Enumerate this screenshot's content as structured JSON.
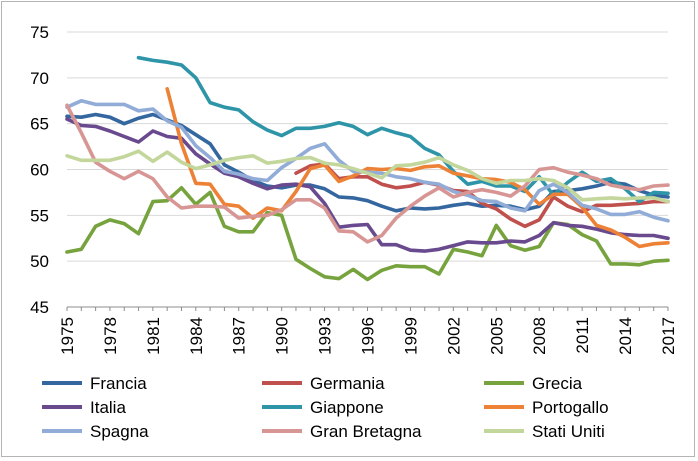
{
  "chart_data": {
    "type": "line",
    "title": "",
    "xlabel": "",
    "ylabel": "",
    "ylim": [
      45,
      75
    ],
    "yticks": [
      45,
      50,
      55,
      60,
      65,
      70,
      75
    ],
    "xlim": [
      1975,
      2017
    ],
    "xticks": [
      1975,
      1978,
      1981,
      1984,
      1987,
      1990,
      1993,
      1996,
      1999,
      2002,
      2005,
      2008,
      2011,
      2014,
      2017
    ],
    "grid": "horizontal",
    "legend_position": "bottom",
    "series": [
      {
        "name": "Francia",
        "color": "#34679f",
        "x": [
          1975,
          1976,
          1977,
          1978,
          1979,
          1980,
          1981,
          1982,
          1983,
          1984,
          1985,
          1986,
          1987,
          1988,
          1989,
          1990,
          1991,
          1992,
          1993,
          1994,
          1995,
          1996,
          1997,
          1998,
          1999,
          2000,
          2001,
          2002,
          2003,
          2004,
          2005,
          2006,
          2007,
          2008,
          2009,
          2010,
          2011,
          2012,
          2013,
          2014,
          2015,
          2016,
          2017
        ],
        "values": [
          65.8,
          65.7,
          66.0,
          65.7,
          65.0,
          65.6,
          66.0,
          65.4,
          64.8,
          63.8,
          62.8,
          60.5,
          59.7,
          58.8,
          58.2,
          58.0,
          58.3,
          58.3,
          57.9,
          57.0,
          56.9,
          56.6,
          56.0,
          55.5,
          55.8,
          55.7,
          55.8,
          56.1,
          56.3,
          56.0,
          56.1,
          56.0,
          55.6,
          56.0,
          57.6,
          57.7,
          57.9,
          58.2,
          58.6,
          58.4,
          57.7,
          57.2,
          57.0
        ]
      },
      {
        "name": "Germania",
        "color": "#c0504d",
        "x": [
          1991,
          1992,
          1993,
          1994,
          1995,
          1996,
          1997,
          1998,
          1999,
          2000,
          2001,
          2002,
          2003,
          2004,
          2005,
          2006,
          2007,
          2008,
          2009,
          2010,
          2011,
          2012,
          2013,
          2014,
          2015,
          2016,
          2017
        ],
        "values": [
          59.6,
          60.4,
          60.6,
          59.0,
          59.2,
          59.2,
          58.4,
          58.0,
          58.2,
          58.6,
          58.3,
          57.7,
          57.6,
          56.3,
          55.7,
          54.6,
          53.8,
          54.5,
          57.0,
          56.0,
          55.4,
          56.1,
          56.1,
          56.2,
          56.3,
          56.5,
          56.5
        ]
      },
      {
        "name": "Grecia",
        "color": "#77a33e",
        "x": [
          1975,
          1976,
          1977,
          1978,
          1979,
          1980,
          1981,
          1982,
          1983,
          1984,
          1985,
          1986,
          1987,
          1988,
          1989,
          1990,
          1991,
          1992,
          1993,
          1994,
          1995,
          1996,
          1997,
          1998,
          1999,
          2000,
          2001,
          2002,
          2003,
          2004,
          2005,
          2006,
          2007,
          2008,
          2009,
          2010,
          2011,
          2012,
          2013,
          2014,
          2015,
          2016,
          2017
        ],
        "values": [
          51.0,
          51.3,
          53.8,
          54.5,
          54.1,
          53.0,
          56.5,
          56.6,
          58.0,
          56.2,
          57.5,
          53.8,
          53.2,
          53.2,
          55.3,
          55.0,
          50.2,
          49.2,
          48.3,
          48.1,
          49.1,
          48.0,
          49.0,
          49.5,
          49.4,
          49.4,
          48.6,
          51.3,
          51.0,
          50.6,
          53.9,
          51.7,
          51.2,
          51.6,
          54.2,
          54.0,
          52.9,
          52.2,
          49.7,
          49.7,
          49.6,
          50.0,
          50.1
        ]
      },
      {
        "name": "Italia",
        "color": "#6a4a8e",
        "x": [
          1975,
          1976,
          1977,
          1978,
          1979,
          1980,
          1981,
          1982,
          1983,
          1984,
          1985,
          1986,
          1987,
          1988,
          1989,
          1990,
          1991,
          1992,
          1993,
          1994,
          1995,
          1996,
          1997,
          1998,
          1999,
          2000,
          2001,
          2002,
          2003,
          2004,
          2005,
          2006,
          2007,
          2008,
          2009,
          2010,
          2011,
          2012,
          2013,
          2014,
          2015,
          2016,
          2017
        ],
        "values": [
          65.5,
          64.8,
          64.7,
          64.2,
          63.6,
          63.0,
          64.2,
          63.6,
          63.4,
          61.7,
          60.6,
          59.6,
          59.2,
          58.5,
          57.9,
          58.3,
          58.4,
          58.1,
          56.3,
          53.7,
          53.9,
          54.0,
          51.8,
          51.8,
          51.2,
          51.1,
          51.3,
          51.7,
          52.1,
          52.0,
          52.0,
          52.2,
          52.1,
          52.8,
          54.2,
          53.9,
          53.8,
          53.5,
          53.1,
          52.9,
          52.8,
          52.8,
          52.5
        ]
      },
      {
        "name": "Giappone",
        "color": "#2e95a9",
        "x": [
          1980,
          1981,
          1982,
          1983,
          1984,
          1985,
          1986,
          1987,
          1988,
          1989,
          1990,
          1991,
          1992,
          1993,
          1994,
          1995,
          1996,
          1997,
          1998,
          1999,
          2000,
          2001,
          2002,
          2003,
          2004,
          2005,
          2006,
          2007,
          2008,
          2009,
          2010,
          2011,
          2012,
          2013,
          2014,
          2015,
          2016,
          2017
        ],
        "values": [
          72.2,
          71.9,
          71.7,
          71.4,
          70.0,
          67.3,
          66.8,
          66.5,
          65.2,
          64.3,
          63.7,
          64.5,
          64.5,
          64.7,
          65.1,
          64.7,
          63.8,
          64.5,
          64.0,
          63.6,
          62.3,
          61.6,
          59.8,
          58.4,
          58.7,
          58.2,
          58.2,
          57.6,
          59.2,
          57.2,
          58.6,
          59.7,
          58.7,
          59.0,
          57.9,
          56.5,
          57.5,
          57.4
        ]
      },
      {
        "name": "Portogallo",
        "color": "#ed8135",
        "x": [
          1982,
          1983,
          1984,
          1985,
          1986,
          1987,
          1988,
          1989,
          1990,
          1991,
          1992,
          1993,
          1994,
          1995,
          1996,
          1997,
          1998,
          1999,
          2000,
          2001,
          2002,
          2003,
          2004,
          2005,
          2006,
          2007,
          2008,
          2009,
          2010,
          2011,
          2012,
          2013,
          2014,
          2015,
          2016,
          2017
        ],
        "values": [
          68.8,
          62.8,
          58.5,
          58.4,
          56.2,
          56.0,
          54.7,
          55.8,
          55.5,
          57.6,
          60.1,
          60.5,
          58.7,
          59.3,
          60.1,
          60.0,
          60.1,
          59.9,
          60.3,
          60.4,
          59.6,
          59.3,
          59.0,
          58.9,
          58.6,
          57.8,
          56.2,
          57.3,
          57.3,
          55.9,
          53.9,
          53.4,
          52.6,
          51.6,
          51.9,
          52.0
        ]
      },
      {
        "name": "Spagna",
        "color": "#92acd8",
        "x": [
          1975,
          1976,
          1977,
          1978,
          1979,
          1980,
          1981,
          1982,
          1983,
          1984,
          1985,
          1986,
          1987,
          1988,
          1989,
          1990,
          1991,
          1992,
          1993,
          1994,
          1995,
          1996,
          1997,
          1998,
          1999,
          2000,
          2001,
          2002,
          2003,
          2004,
          2005,
          2006,
          2007,
          2008,
          2009,
          2010,
          2011,
          2012,
          2013,
          2014,
          2015,
          2016,
          2017
        ],
        "values": [
          66.8,
          67.5,
          67.1,
          67.1,
          67.1,
          66.4,
          66.6,
          65.3,
          64.6,
          62.6,
          61.3,
          59.8,
          59.5,
          59.0,
          58.8,
          60.2,
          61.2,
          62.3,
          62.8,
          61.0,
          59.8,
          59.7,
          59.6,
          59.2,
          59.0,
          58.6,
          58.4,
          57.6,
          57.2,
          56.6,
          56.5,
          55.8,
          55.5,
          57.7,
          58.4,
          57.5,
          56.1,
          55.7,
          55.1,
          55.1,
          55.4,
          54.8,
          54.4
        ]
      },
      {
        "name": "Gran Bretagna",
        "color": "#d79694",
        "x": [
          1975,
          1976,
          1977,
          1978,
          1979,
          1980,
          1981,
          1982,
          1983,
          1984,
          1985,
          1986,
          1987,
          1988,
          1989,
          1990,
          1991,
          1992,
          1993,
          1994,
          1995,
          1996,
          1997,
          1998,
          1999,
          2000,
          2001,
          2002,
          2003,
          2004,
          2005,
          2006,
          2007,
          2008,
          2009,
          2010,
          2011,
          2012,
          2013,
          2014,
          2015,
          2016,
          2017
        ],
        "values": [
          67.0,
          64.0,
          60.8,
          59.8,
          59.0,
          59.8,
          59.0,
          57.0,
          55.8,
          56.0,
          56.0,
          55.9,
          54.7,
          54.9,
          55.0,
          55.6,
          56.7,
          56.7,
          55.8,
          53.3,
          53.2,
          52.1,
          52.8,
          54.7,
          56.0,
          57.1,
          58.0,
          57.0,
          57.5,
          57.8,
          57.5,
          57.1,
          58.2,
          60.0,
          60.2,
          59.7,
          59.4,
          59.0,
          58.3,
          58.0,
          57.8,
          58.2,
          58.3
        ]
      },
      {
        "name": "Stati Uniti",
        "color": "#c3d69b",
        "x": [
          1975,
          1976,
          1977,
          1978,
          1979,
          1980,
          1981,
          1982,
          1983,
          1984,
          1985,
          1986,
          1987,
          1988,
          1989,
          1990,
          1991,
          1992,
          1993,
          1994,
          1995,
          1996,
          1997,
          1998,
          1999,
          2000,
          2001,
          2002,
          2003,
          2004,
          2005,
          2006,
          2007,
          2008,
          2009,
          2010,
          2011,
          2012,
          2013,
          2014,
          2015,
          2016,
          2017
        ],
        "values": [
          61.5,
          61.0,
          61.0,
          61.0,
          61.4,
          62.0,
          60.9,
          61.9,
          60.8,
          60.1,
          60.5,
          61.0,
          61.3,
          61.5,
          60.7,
          60.9,
          61.2,
          61.3,
          60.7,
          60.5,
          60.1,
          59.6,
          59.1,
          60.4,
          60.5,
          60.8,
          61.3,
          60.5,
          59.9,
          59.0,
          58.5,
          58.8,
          58.8,
          59.0,
          58.8,
          58.0,
          56.7,
          56.8,
          56.9,
          56.8,
          56.9,
          56.9,
          56.5
        ]
      }
    ]
  }
}
